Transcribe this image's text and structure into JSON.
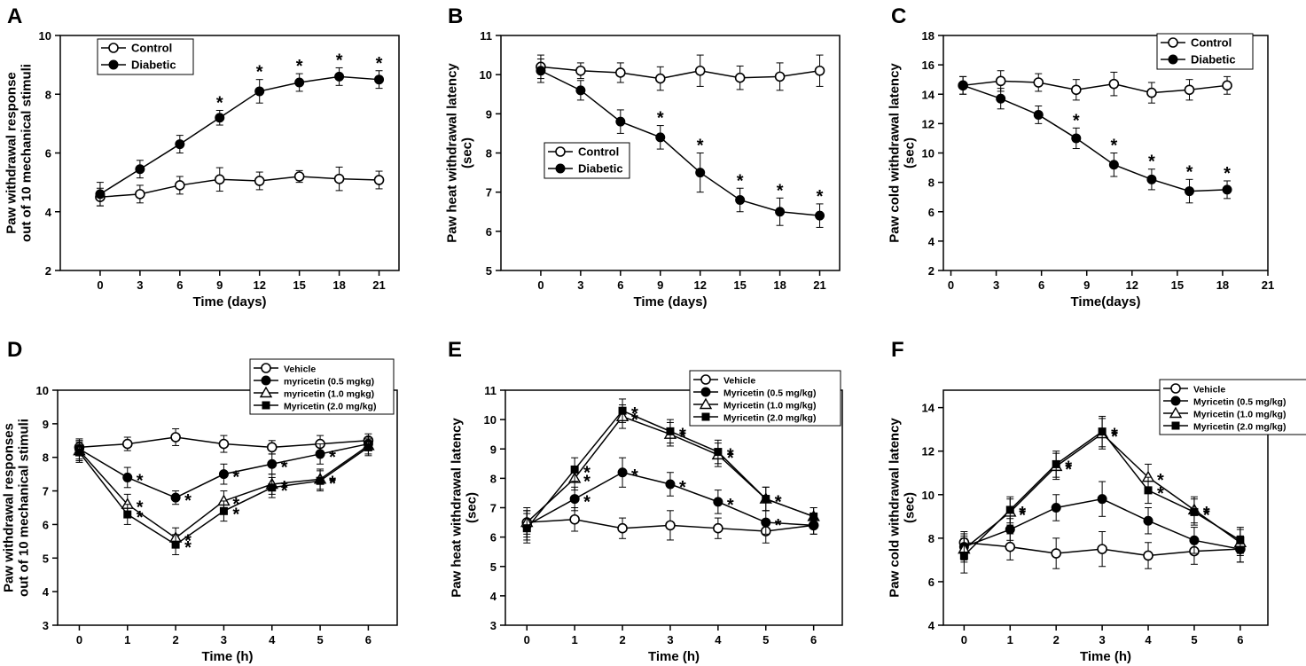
{
  "chart_data": [
    {
      "type": "line",
      "panel": "A",
      "xlabel": "Time (days)",
      "ylabel_lines": [
        "Paw withdrawal response",
        "out of 10 mechanical stimuli"
      ],
      "xlim": [
        -3,
        22.5
      ],
      "ylim": [
        2,
        10
      ],
      "xticks": [
        0,
        3,
        6,
        9,
        12,
        15,
        18,
        21
      ],
      "yticks": [
        2,
        4,
        6,
        8,
        10
      ],
      "legend": {
        "position": "top-left"
      },
      "series": [
        {
          "name": "Control",
          "marker": "circle-open",
          "x": [
            0,
            3,
            6,
            9,
            12,
            15,
            18,
            21
          ],
          "y": [
            4.5,
            4.6,
            4.9,
            5.1,
            5.05,
            5.2,
            5.12,
            5.08
          ],
          "err": [
            0.3,
            0.3,
            0.3,
            0.4,
            0.3,
            0.2,
            0.4,
            0.3
          ]
        },
        {
          "name": "Diabetic",
          "marker": "circle-filled",
          "x": [
            0,
            3,
            6,
            9,
            12,
            15,
            18,
            21
          ],
          "y": [
            4.6,
            5.45,
            6.3,
            7.2,
            8.1,
            8.4,
            8.6,
            8.5
          ],
          "err": [
            0.4,
            0.3,
            0.3,
            0.25,
            0.4,
            0.3,
            0.3,
            0.3
          ],
          "stars": [
            9,
            12,
            15,
            18,
            21
          ]
        }
      ]
    },
    {
      "type": "line",
      "panel": "B",
      "xlabel": "Time (days)",
      "ylabel_lines": [
        "Paw heat withdrawal latency",
        "(sec)"
      ],
      "xlim": [
        -3,
        22.5
      ],
      "ylim": [
        5,
        11
      ],
      "xticks": [
        0,
        3,
        6,
        9,
        12,
        15,
        18,
        21
      ],
      "yticks": [
        5,
        6,
        7,
        8,
        9,
        10,
        11
      ],
      "legend": {
        "position": "center-left"
      },
      "series": [
        {
          "name": "Control",
          "marker": "circle-open",
          "x": [
            0,
            3,
            6,
            9,
            12,
            15,
            18,
            21
          ],
          "y": [
            10.2,
            10.1,
            10.05,
            9.9,
            10.1,
            9.92,
            9.95,
            10.1
          ],
          "err": [
            0.3,
            0.2,
            0.25,
            0.3,
            0.4,
            0.3,
            0.35,
            0.4
          ]
        },
        {
          "name": "Diabetic",
          "marker": "circle-filled",
          "x": [
            0,
            3,
            6,
            9,
            12,
            15,
            18,
            21
          ],
          "y": [
            10.1,
            9.6,
            8.8,
            8.4,
            7.5,
            6.8,
            6.5,
            6.4
          ],
          "err": [
            0.3,
            0.25,
            0.3,
            0.3,
            0.5,
            0.3,
            0.35,
            0.3
          ],
          "stars": [
            9,
            12,
            15,
            18,
            21
          ]
        }
      ]
    },
    {
      "type": "line",
      "panel": "C",
      "xlabel": "Time(days)",
      "ylabel_lines": [
        "Paw cold withdrawal latency",
        "(sec)"
      ],
      "xlim": [
        -0.5,
        21
      ],
      "ylim": [
        2,
        18
      ],
      "xticks": [
        0,
        3,
        6,
        9,
        12,
        15,
        18,
        21
      ],
      "yticks": [
        2,
        4,
        6,
        8,
        10,
        12,
        14,
        16,
        18
      ],
      "legend": {
        "position": "top-right"
      },
      "series": [
        {
          "name": "Control",
          "marker": "circle-open",
          "x": [
            0.8,
            3.3,
            5.8,
            8.3,
            10.8,
            13.3,
            15.8,
            18.3
          ],
          "y": [
            14.6,
            14.9,
            14.8,
            14.3,
            14.7,
            14.1,
            14.3,
            14.6
          ],
          "err": [
            0.6,
            0.7,
            0.6,
            0.7,
            0.8,
            0.7,
            0.7,
            0.6
          ]
        },
        {
          "name": "Diabetic",
          "marker": "circle-filled",
          "x": [
            0.8,
            3.3,
            5.8,
            8.3,
            10.8,
            13.3,
            15.8,
            18.3
          ],
          "y": [
            14.6,
            13.7,
            12.6,
            11.0,
            9.2,
            8.2,
            7.4,
            7.5
          ],
          "err": [
            0.6,
            0.7,
            0.6,
            0.7,
            0.8,
            0.7,
            0.8,
            0.6
          ],
          "stars": [
            8.3,
            10.8,
            13.3,
            15.8,
            18.3
          ]
        }
      ]
    },
    {
      "type": "line",
      "panel": "D",
      "xlabel": "Time (h)",
      "ylabel_lines": [
        "Paw withdrawal responses",
        "out of 10 mechanical stimuli"
      ],
      "xlim": [
        -0.45,
        6.6
      ],
      "ylim": [
        3,
        10
      ],
      "xticks": [
        0,
        1,
        2,
        3,
        4,
        5,
        6
      ],
      "yticks": [
        3,
        4,
        5,
        6,
        7,
        8,
        9,
        10
      ],
      "legend": {
        "position": "top-right"
      },
      "series": [
        {
          "name": "Vehicle",
          "marker": "circle-open",
          "x": [
            0,
            1,
            2,
            3,
            4,
            5,
            6
          ],
          "y": [
            8.3,
            8.4,
            8.6,
            8.4,
            8.3,
            8.4,
            8.5
          ],
          "err": [
            0.2,
            0.2,
            0.25,
            0.25,
            0.2,
            0.25,
            0.2
          ]
        },
        {
          "name": "myricetin (0.5 mgkg)",
          "marker": "circle-filled",
          "x": [
            0,
            1,
            2,
            3,
            4,
            5,
            6
          ],
          "y": [
            8.25,
            7.4,
            6.8,
            7.5,
            7.8,
            8.1,
            8.4
          ],
          "err": [
            0.3,
            0.3,
            0.2,
            0.3,
            0.3,
            0.3,
            0.2
          ],
          "stars": [
            1,
            2,
            3,
            4,
            5
          ]
        },
        {
          "name": "myricetin (1.0 mgkg)",
          "marker": "triangle-open",
          "x": [
            0,
            1,
            2,
            3,
            4,
            5,
            6
          ],
          "y": [
            8.2,
            6.6,
            5.6,
            6.7,
            7.2,
            7.35,
            8.35
          ],
          "err": [
            0.3,
            0.3,
            0.3,
            0.3,
            0.3,
            0.3,
            0.25
          ],
          "stars": [
            1,
            2,
            3,
            4,
            5
          ]
        },
        {
          "name": "Myricetin (2.0 mg/kg)",
          "marker": "square-filled",
          "x": [
            0,
            1,
            2,
            3,
            4,
            5,
            6
          ],
          "y": [
            8.15,
            6.3,
            5.4,
            6.4,
            7.1,
            7.3,
            8.3
          ],
          "err": [
            0.3,
            0.3,
            0.3,
            0.3,
            0.3,
            0.3,
            0.25
          ],
          "stars": [
            1,
            2,
            3,
            4,
            5
          ]
        }
      ]
    },
    {
      "type": "line",
      "panel": "E",
      "xlabel": "Time (h)",
      "ylabel_lines": [
        "Paw heat withdrawal latency",
        "(sec)"
      ],
      "xlim": [
        -0.45,
        6.6
      ],
      "ylim": [
        3,
        11
      ],
      "xticks": [
        0,
        1,
        2,
        3,
        4,
        5,
        6
      ],
      "yticks": [
        3,
        4,
        5,
        6,
        7,
        8,
        9,
        10,
        11
      ],
      "legend": {
        "position": "top-right"
      },
      "series": [
        {
          "name": "Vehicle",
          "marker": "circle-open",
          "x": [
            0,
            1,
            2,
            3,
            4,
            5,
            6
          ],
          "y": [
            6.5,
            6.6,
            6.3,
            6.4,
            6.3,
            6.2,
            6.4
          ],
          "err": [
            0.4,
            0.4,
            0.35,
            0.5,
            0.35,
            0.4,
            0.3
          ]
        },
        {
          "name": "Myricetin (0.5 mg/kg)",
          "marker": "circle-filled",
          "x": [
            0,
            1,
            2,
            3,
            4,
            5,
            6
          ],
          "y": [
            6.4,
            7.3,
            8.2,
            7.8,
            7.2,
            6.5,
            6.4
          ],
          "err": [
            0.5,
            0.4,
            0.5,
            0.4,
            0.4,
            0.4,
            0.3
          ],
          "stars": [
            1,
            2,
            3,
            4,
            5
          ]
        },
        {
          "name": "Myricetin (1.0 mg/kg)",
          "marker": "triangle-open",
          "x": [
            0,
            1,
            2,
            3,
            4,
            5,
            6
          ],
          "y": [
            6.5,
            8.0,
            10.1,
            9.5,
            8.8,
            7.3,
            6.7
          ],
          "err": [
            0.5,
            0.4,
            0.4,
            0.4,
            0.4,
            0.4,
            0.3
          ],
          "stars": [
            1,
            2,
            3,
            4,
            5
          ]
        },
        {
          "name": "Myricetin (2.0 mg/kg)",
          "marker": "square-filled",
          "x": [
            0,
            1,
            2,
            3,
            4,
            5,
            6
          ],
          "y": [
            6.3,
            8.3,
            10.3,
            9.6,
            8.9,
            7.3,
            6.7
          ],
          "err": [
            0.5,
            0.4,
            0.4,
            0.4,
            0.4,
            0.4,
            0.3
          ],
          "stars": [
            1,
            2,
            3,
            4,
            5
          ]
        }
      ]
    },
    {
      "type": "line",
      "panel": "F",
      "xlabel": "Time (h)",
      "ylabel_lines": [
        "Paw cold withdrawal latency",
        "(sec)"
      ],
      "xlim": [
        -0.45,
        6.6
      ],
      "ylim": [
        4,
        14.8
      ],
      "xticks": [
        0,
        1,
        2,
        3,
        4,
        5,
        6
      ],
      "yticks": [
        4,
        6,
        8,
        10,
        12,
        14
      ],
      "legend": {
        "position": "top-right"
      },
      "series": [
        {
          "name": "Vehicle",
          "marker": "circle-open",
          "x": [
            0,
            1,
            2,
            3,
            4,
            5,
            6
          ],
          "y": [
            7.8,
            7.6,
            7.3,
            7.5,
            7.2,
            7.4,
            7.5
          ],
          "err": [
            0.5,
            0.6,
            0.7,
            0.8,
            0.6,
            0.6,
            0.6
          ]
        },
        {
          "name": "Myricetin (0.5 mg/kg)",
          "marker": "circle-filled",
          "x": [
            0,
            1,
            2,
            3,
            4,
            5,
            6
          ],
          "y": [
            7.6,
            8.4,
            9.4,
            9.8,
            8.8,
            7.9,
            7.5
          ],
          "err": [
            0.6,
            0.5,
            0.6,
            0.8,
            0.6,
            0.6,
            0.6
          ]
        },
        {
          "name": "Myricetin (1.0 mg/kg)",
          "marker": "triangle-open",
          "x": [
            0,
            1,
            2,
            3,
            4,
            5,
            6
          ],
          "y": [
            7.5,
            9.2,
            11.3,
            12.8,
            10.8,
            9.3,
            7.8
          ],
          "err": [
            0.6,
            0.6,
            0.6,
            0.7,
            0.6,
            0.6,
            0.6
          ],
          "stars": [
            1,
            2,
            3,
            4,
            5
          ]
        },
        {
          "name": "Myricetin (2.0 mg/kg)",
          "marker": "square-filled",
          "x": [
            0,
            1,
            2,
            3,
            4,
            5,
            6
          ],
          "y": [
            7.2,
            9.3,
            11.4,
            12.9,
            10.2,
            9.2,
            7.9
          ],
          "err": [
            0.8,
            0.6,
            0.6,
            0.7,
            0.6,
            0.6,
            0.6
          ],
          "stars": [
            1,
            2,
            3,
            4,
            5
          ]
        }
      ]
    }
  ]
}
